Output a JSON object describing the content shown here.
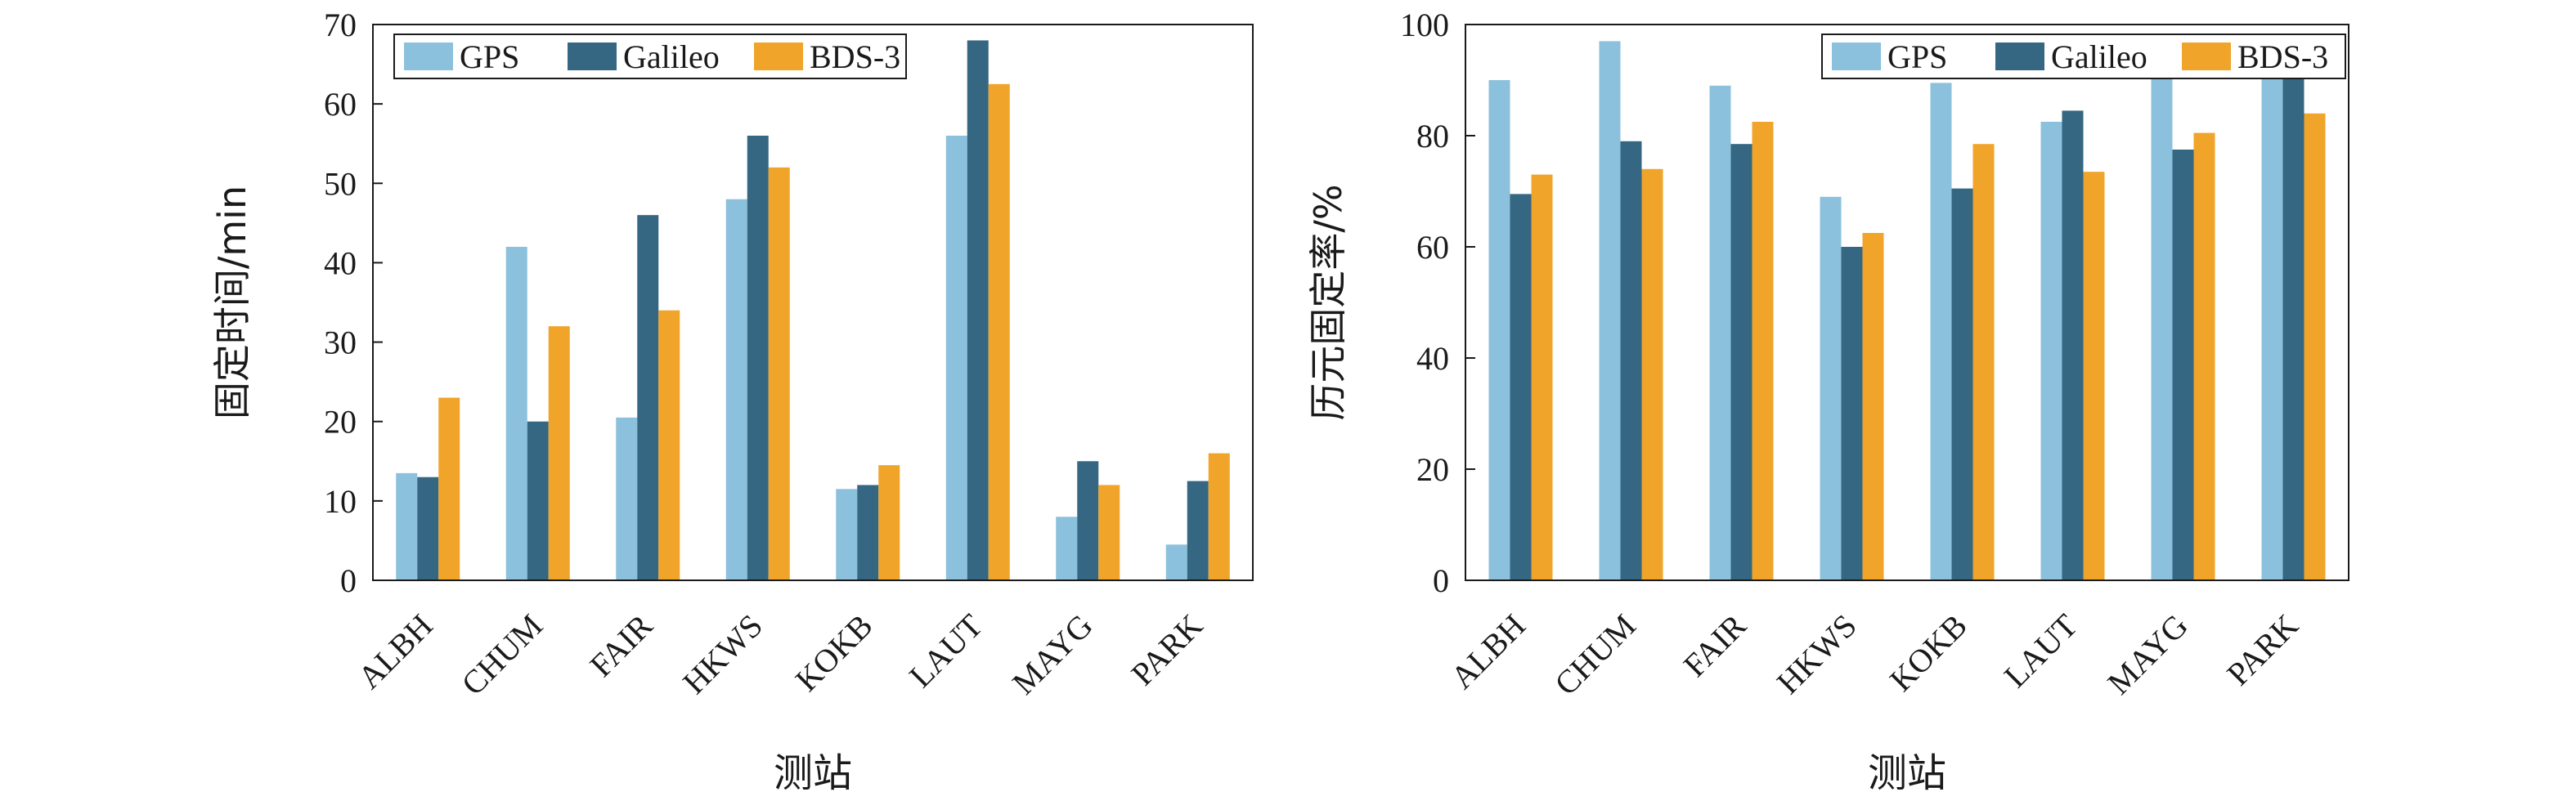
{
  "chart_data": [
    {
      "type": "bar",
      "categories": [
        "ALBH",
        "CHUM",
        "FAIR",
        "HKWS",
        "KOKB",
        "LAUT",
        "MAYG",
        "PARK"
      ],
      "series": [
        {
          "name": "GPS",
          "color": "#8bc1dc",
          "values": [
            13.5,
            42,
            20.5,
            48,
            11.5,
            56,
            8,
            4.5
          ]
        },
        {
          "name": "Galileo",
          "color": "#356682",
          "values": [
            13,
            20,
            46,
            56,
            12,
            68,
            15,
            12.5
          ]
        },
        {
          "name": "BDS-3",
          "color": "#f0a42a",
          "values": [
            23,
            32,
            34,
            52,
            14.5,
            62.5,
            12,
            16
          ]
        }
      ],
      "xlabel": "测站",
      "ylabel": "固定时间/min",
      "ylim": [
        0,
        70
      ],
      "yticks": [
        0,
        10,
        20,
        30,
        40,
        50,
        60,
        70
      ],
      "legend": "top-left",
      "grid": false
    },
    {
      "type": "bar",
      "categories": [
        "ALBH",
        "CHUM",
        "FAIR",
        "HKWS",
        "KOKB",
        "LAUT",
        "MAYG",
        "PARK"
      ],
      "series": [
        {
          "name": "GPS",
          "color": "#8bc1dc",
          "values": [
            90,
            97,
            89,
            69,
            89.5,
            82.5,
            91,
            93
          ]
        },
        {
          "name": "Galileo",
          "color": "#356682",
          "values": [
            69.5,
            79,
            78.5,
            60,
            70.5,
            84.5,
            77.5,
            91
          ]
        },
        {
          "name": "BDS-3",
          "color": "#f0a42a",
          "values": [
            73,
            74,
            82.5,
            62.5,
            78.5,
            73.5,
            80.5,
            84
          ]
        }
      ],
      "xlabel": "测站",
      "ylabel": "历元固定率/%",
      "ylim": [
        0,
        100
      ],
      "yticks": [
        0,
        20,
        40,
        60,
        80,
        100
      ],
      "legend": "top-right",
      "grid": false
    }
  ]
}
